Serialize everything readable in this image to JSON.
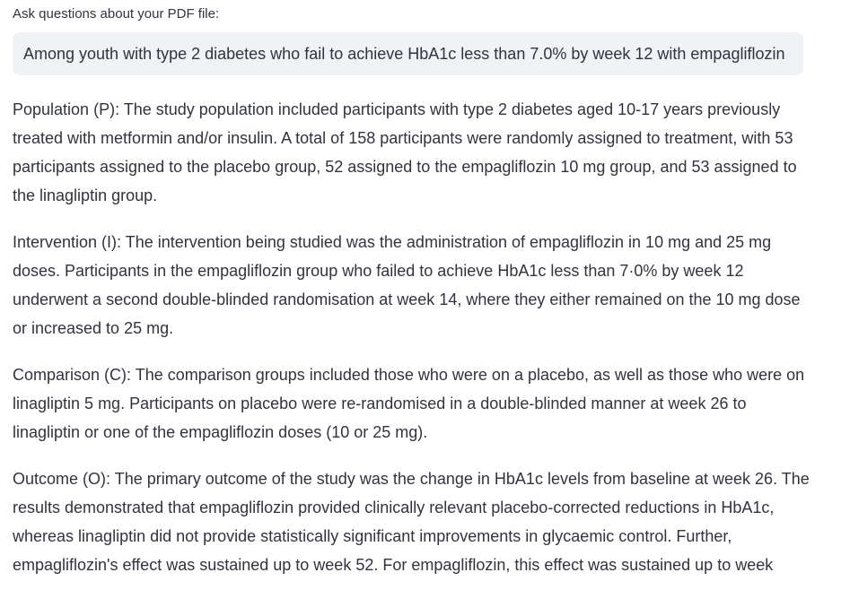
{
  "question": {
    "label": "Ask questions about your PDF file:",
    "value": "Among youth with type 2 diabetes who fail to achieve HbA1c less than 7.0% by week 12 with empagliflozin"
  },
  "answer": {
    "paragraphs": [
      "Population (P): The study population included participants with type 2 diabetes aged 10-17 years previously treated with metformin and/or insulin. A total of 158 participants were randomly assigned to treatment, with 53 participants assigned to the placebo group, 52 assigned to the empagliflozin 10 mg group, and 53 assigned to the linagliptin group.",
      "Intervention (I): The intervention being studied was the administration of empagliflozin in 10 mg and 25 mg doses. Participants in the empagliflozin group who failed to achieve HbA1c less than 7·0% by week 12 underwent a second double-blinded randomisation at week 14, where they either remained on the 10 mg dose or increased to 25 mg.",
      "Comparison (C): The comparison groups included those who were on a placebo, as well as those who were on linagliptin 5 mg. Participants on placebo were re-randomised in a double-blinded manner at week 26 to linagliptin or one of the empagliflozin doses (10 or 25 mg).",
      "Outcome (O): The primary outcome of the study was the change in HbA1c levels from baseline at week 26. The results demonstrated that empagliflozin provided clinically relevant placebo-corrected reductions in HbA1c, whereas linagliptin did not provide statistically significant improvements in glycaemic control. Further, empagliflozin's effect was sustained up to week 52. For empagliflozin, this effect was sustained up to week"
    ]
  }
}
